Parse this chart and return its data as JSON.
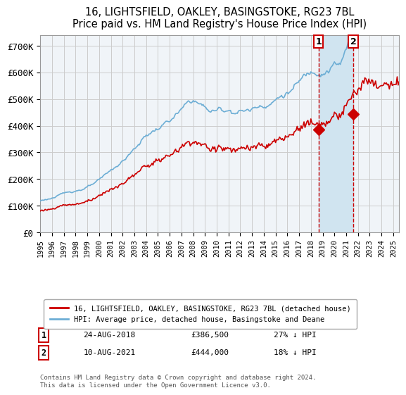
{
  "title": "16, LIGHTSFIELD, OAKLEY, BASINGSTOKE, RG23 7BL",
  "subtitle": "Price paid vs. HM Land Registry's House Price Index (HPI)",
  "ylabel_ticks": [
    "£0",
    "£100K",
    "£200K",
    "£300K",
    "£400K",
    "£500K",
    "£600K",
    "£700K"
  ],
  "ytick_values": [
    0,
    100000,
    200000,
    300000,
    400000,
    500000,
    600000,
    700000
  ],
  "ylim": [
    0,
    740000
  ],
  "xlim_start": 1995.0,
  "xlim_end": 2025.5,
  "hpi_color": "#6daed5",
  "price_color": "#cc0000",
  "marker1_date": 2018.646,
  "marker1_price": 386500,
  "marker2_date": 2021.607,
  "marker2_price": 444000,
  "annotation1_label": "1",
  "annotation2_label": "2",
  "annotation1_date_str": "24-AUG-2018",
  "annotation1_price_str": "£386,500",
  "annotation1_pct_str": "27% ↓ HPI",
  "annotation2_date_str": "10-AUG-2021",
  "annotation2_price_str": "£444,000",
  "annotation2_pct_str": "18% ↓ HPI",
  "legend1_label": "16, LIGHTSFIELD, OAKLEY, BASINGSTOKE, RG23 7BL (detached house)",
  "legend2_label": "HPI: Average price, detached house, Basingstoke and Deane",
  "footnote": "Contains HM Land Registry data © Crown copyright and database right 2024.\nThis data is licensed under the Open Government Licence v3.0.",
  "background_color": "#f0f4f8",
  "shaded_region_color": "#d0e4f0",
  "grid_color": "#cccccc",
  "dashed_line_color": "#cc0000"
}
